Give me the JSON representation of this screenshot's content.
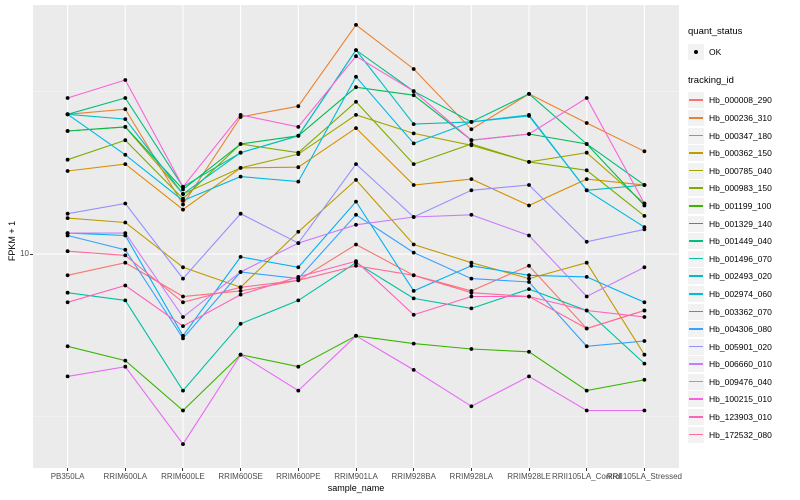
{
  "figure": {
    "y_axis": {
      "title": "FPKM + 1",
      "tick_labels": [
        "10"
      ]
    },
    "x_axis": {
      "title": "sample_name"
    },
    "legend": {
      "quant_status": {
        "title": "quant_status",
        "items": [
          {
            "label": "OK",
            "marker": "black-point"
          }
        ]
      },
      "tracking_id": {
        "title": "tracking_id"
      }
    },
    "chart_data": {
      "type": "line",
      "title": "",
      "xlabel": "sample_name",
      "ylabel": "FPKM + 1",
      "y_scale": "log10",
      "ylim": [
        2.3,
        55
      ],
      "y_major_tick": 10,
      "grid": "white-on-gray-panel",
      "legend_position": "right",
      "panel_color": "#EBEBEB",
      "point_color": "#000000",
      "categories": [
        "PB350LA",
        "RRIM600LA",
        "RRIM600LE",
        "RRIM600SE",
        "RRIM600PE",
        "RRIM901LA",
        "RRIM928BA",
        "RRIM928LA",
        "RRIM928LE",
        "RRII105LA_Control",
        "RRII105LA_Stressed"
      ],
      "series": [
        {
          "name": "Hb_000008_290",
          "color": "#F8766D",
          "values": [
            8.6,
            9.4,
            7.4,
            7.7,
            8.3,
            10.7,
            8.6,
            7.7,
            9.2,
            5.9,
            6.7
          ]
        },
        {
          "name": "Hb_000236_310",
          "color": "#EA8331",
          "values": [
            26.9,
            27.9,
            14.2,
            26.4,
            28.5,
            50.7,
            37.1,
            24.2,
            31.1,
            25.3,
            20.7
          ]
        },
        {
          "name": "Hb_000347_180",
          "color": "#D89000",
          "values": [
            18.0,
            18.9,
            13.7,
            18.4,
            18.5,
            24.4,
            16.3,
            17.0,
            14.1,
            17.0,
            16.3
          ]
        },
        {
          "name": "Hb_000362_150",
          "color": "#C09B00",
          "values": [
            12.9,
            12.5,
            9.1,
            7.9,
            11.7,
            16.9,
            10.7,
            9.4,
            8.4,
            9.4,
            4.9
          ]
        },
        {
          "name": "Hb_000785_040",
          "color": "#A3A500",
          "values": [
            23.9,
            24.6,
            15.3,
            18.4,
            20.3,
            26.8,
            23.5,
            21.6,
            19.2,
            20.5,
            14.3
          ]
        },
        {
          "name": "Hb_000983_150",
          "color": "#7CAE00",
          "values": [
            19.5,
            22.4,
            14.8,
            21.8,
            20.5,
            29.4,
            18.9,
            21.8,
            19.2,
            18.1,
            13.1
          ]
        },
        {
          "name": "Hb_001199_100",
          "color": "#39B600",
          "values": [
            5.2,
            4.7,
            3.3,
            4.9,
            4.5,
            5.6,
            5.3,
            5.1,
            5.0,
            3.8,
            4.1
          ]
        },
        {
          "name": "Hb_001329_140",
          "color": "#00BB4E",
          "values": [
            23.9,
            24.6,
            15.8,
            21.8,
            23.1,
            32.6,
            30.8,
            22.4,
            23.4,
            21.8,
            14.1
          ]
        },
        {
          "name": "Hb_001449_040",
          "color": "#00BF7D",
          "values": [
            26.9,
            30.2,
            16.1,
            20.5,
            23.1,
            42.4,
            31.7,
            25.5,
            31.1,
            21.8,
            16.3
          ]
        },
        {
          "name": "Hb_001496_070",
          "color": "#00C1A3",
          "values": [
            7.6,
            7.2,
            3.8,
            6.1,
            7.2,
            9.4,
            7.3,
            6.8,
            7.8,
            6.7,
            4.6
          ]
        },
        {
          "name": "Hb_002493_020",
          "color": "#00BFC4",
          "values": [
            26.9,
            26.0,
            15.3,
            20.5,
            23.1,
            42.4,
            25.1,
            25.5,
            26.6,
            15.7,
            16.3
          ]
        },
        {
          "name": "Hb_002974_060",
          "color": "#00BAE0",
          "values": [
            26.9,
            20.2,
            14.6,
            17.3,
            16.7,
            35.1,
            21.9,
            25.5,
            26.8,
            15.7,
            12.1
          ]
        },
        {
          "name": "Hb_003362_070",
          "color": "#00B0F6",
          "values": [
            11.6,
            11.4,
            5.6,
            9.8,
            9.1,
            14.5,
            7.7,
            9.2,
            8.6,
            8.5,
            7.1
          ]
        },
        {
          "name": "Hb_004306_080",
          "color": "#35A2FF",
          "values": [
            11.4,
            10.3,
            5.5,
            8.8,
            8.4,
            13.2,
            10.1,
            8.4,
            8.2,
            5.2,
            5.4
          ]
        },
        {
          "name": "Hb_005901_020",
          "color": "#9590FF",
          "values": [
            13.3,
            14.3,
            8.4,
            13.3,
            10.8,
            18.9,
            13.0,
            15.7,
            16.3,
            10.9,
            11.9
          ]
        },
        {
          "name": "Hb_006660_010",
          "color": "#C77CFF",
          "values": [
            11.6,
            11.6,
            6.4,
            8.8,
            10.8,
            12.3,
            13.0,
            13.2,
            11.4,
            7.4,
            9.1
          ]
        },
        {
          "name": "Hb_009476_040",
          "color": "#E76BF3",
          "values": [
            4.2,
            4.5,
            2.6,
            4.9,
            3.8,
            5.6,
            4.4,
            3.4,
            4.2,
            3.3,
            3.3
          ]
        },
        {
          "name": "Hb_100215_010",
          "color": "#FA62DB",
          "values": [
            30.2,
            34.3,
            16.1,
            26.8,
            24.6,
            40.6,
            31.7,
            22.4,
            23.4,
            30.2,
            14.3
          ]
        },
        {
          "name": "Hb_123903_010",
          "color": "#FF62BC",
          "values": [
            7.1,
            8.0,
            6.0,
            7.5,
            8.5,
            9.5,
            6.5,
            7.4,
            7.4,
            6.7,
            6.4
          ]
        },
        {
          "name": "Hb_172532_080",
          "color": "#FF6A98",
          "values": [
            10.2,
            9.9,
            7.1,
            7.9,
            8.3,
            9.2,
            8.6,
            7.6,
            7.4,
            5.9,
            6.7
          ]
        }
      ]
    }
  }
}
